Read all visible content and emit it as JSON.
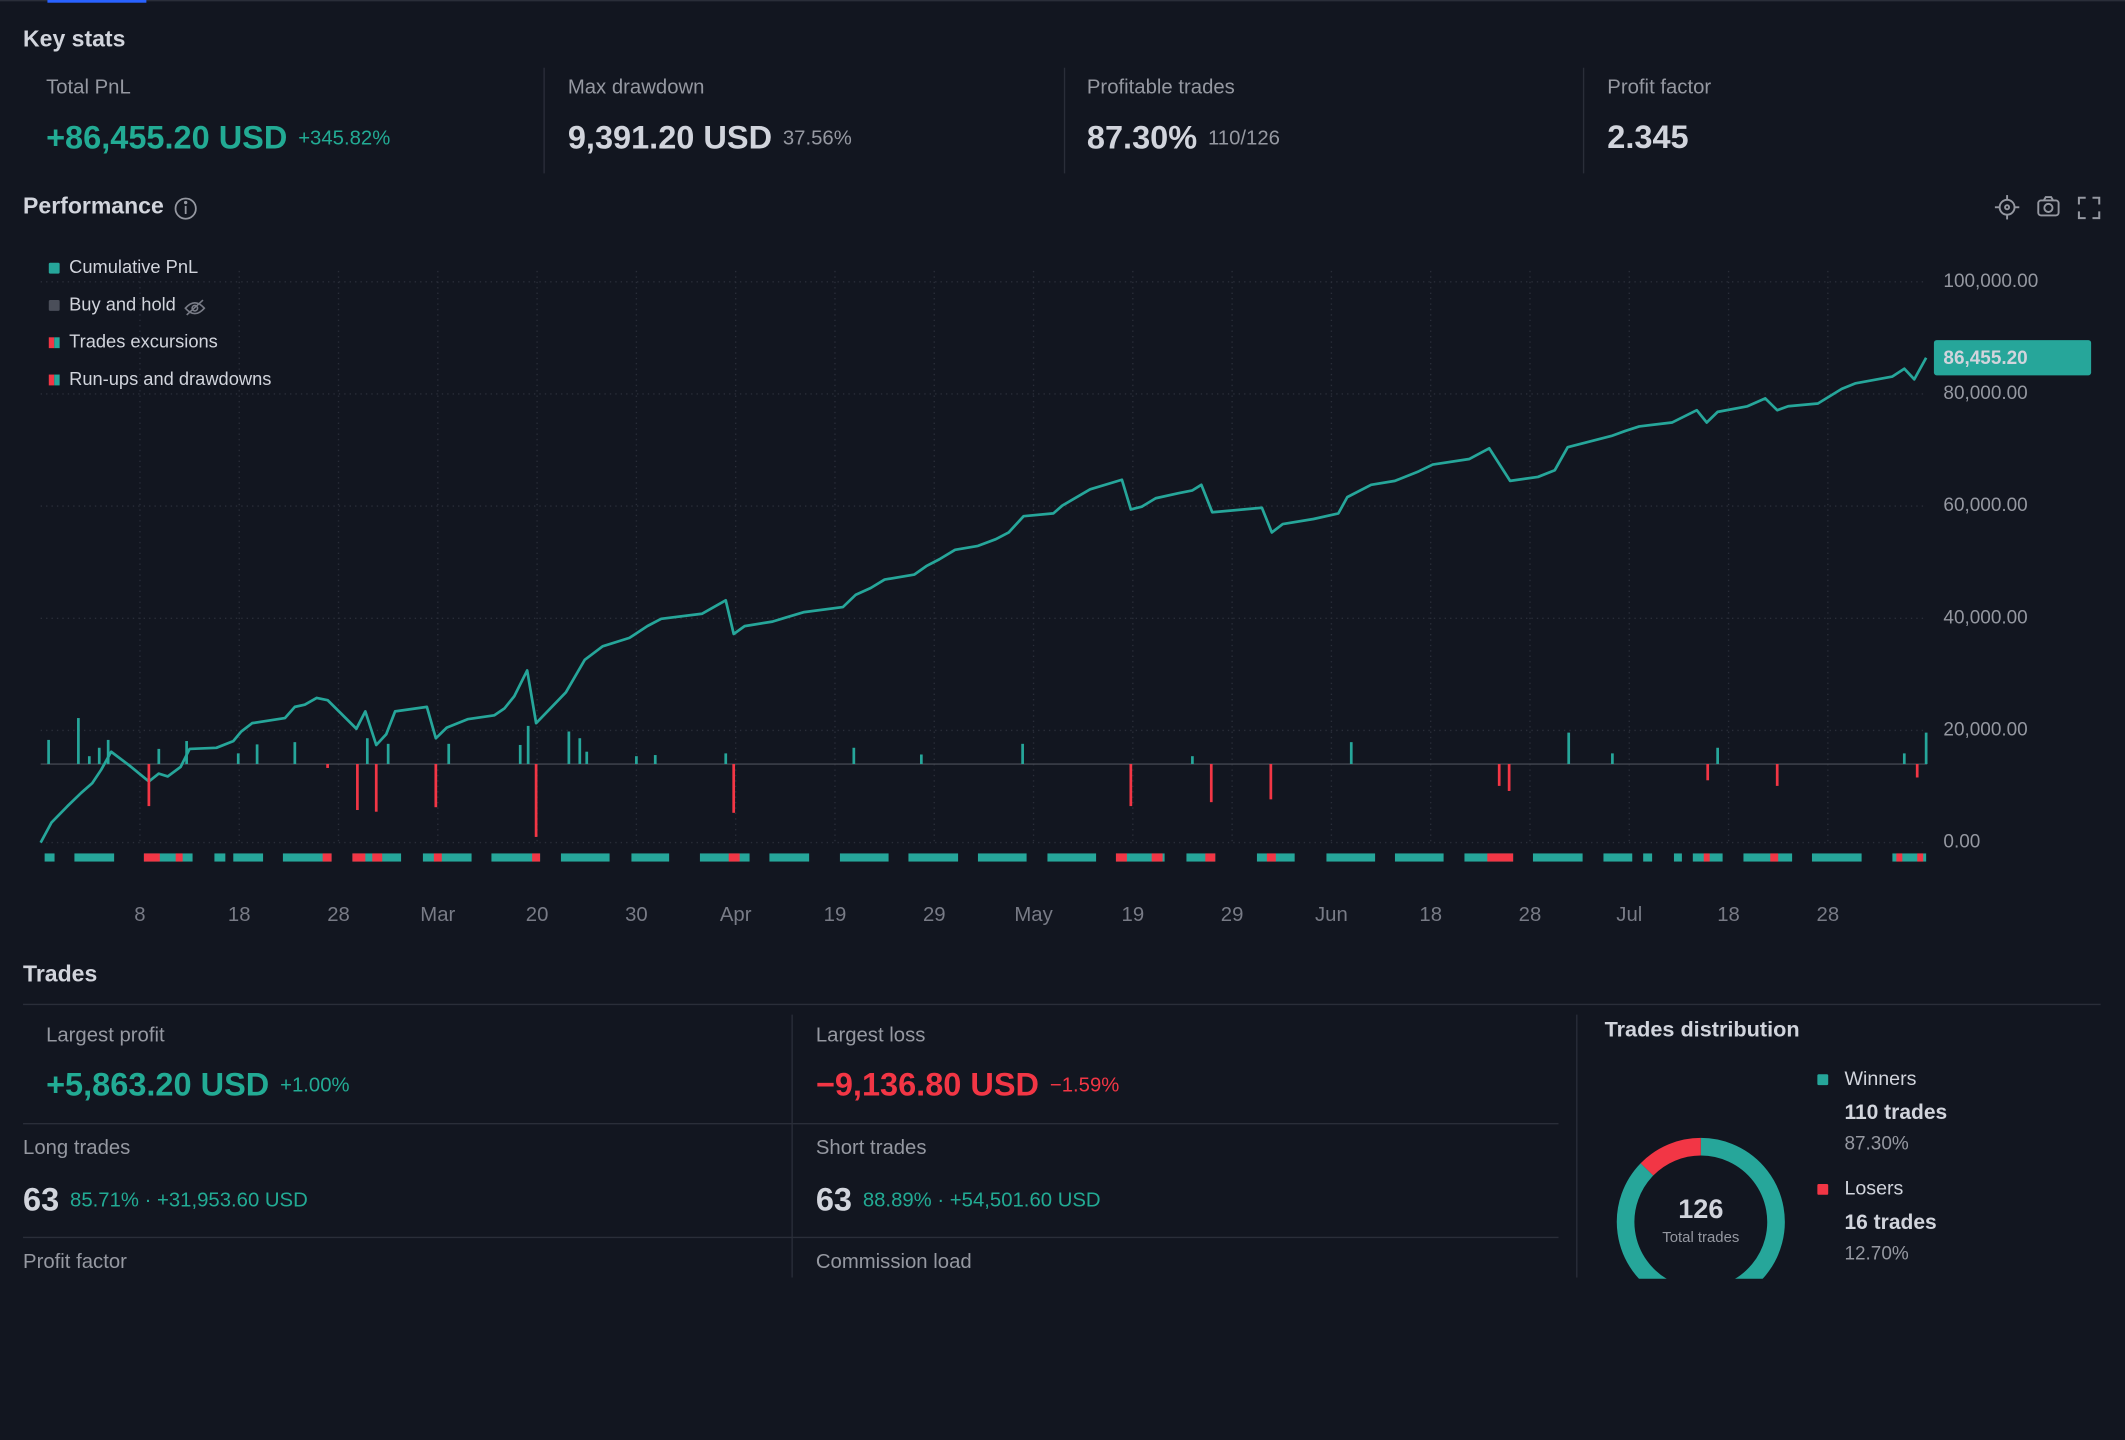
{
  "key_stats": {
    "title": "Key stats",
    "items": [
      {
        "label": "Total PnL",
        "value": "+86,455.20 USD",
        "sub": "+345.82%"
      },
      {
        "label": "Max drawdown",
        "value": "9,391.20 USD",
        "sub": "37.56%"
      },
      {
        "label": "Profitable trades",
        "value": "87.30%",
        "sub": "110/126"
      },
      {
        "label": "Profit factor",
        "value": "2.345"
      }
    ]
  },
  "chart_data": [
    {
      "type": "line",
      "title": "Performance",
      "xlim": [
        0,
        190
      ],
      "ylim": [
        0,
        100000
      ],
      "grid": true,
      "xticks": [
        {
          "value": 10,
          "label": "8"
        },
        {
          "value": 20,
          "label": "18"
        },
        {
          "value": 30,
          "label": "28"
        },
        {
          "value": 40,
          "label": "Mar"
        },
        {
          "value": 50,
          "label": "20"
        },
        {
          "value": 60,
          "label": "30"
        },
        {
          "value": 70,
          "label": "Apr"
        },
        {
          "value": 80,
          "label": "19"
        },
        {
          "value": 90,
          "label": "29"
        },
        {
          "value": 100,
          "label": "May"
        },
        {
          "value": 110,
          "label": "19"
        },
        {
          "value": 120,
          "label": "29"
        },
        {
          "value": 130,
          "label": "Jun"
        },
        {
          "value": 140,
          "label": "18"
        },
        {
          "value": 150,
          "label": "28"
        },
        {
          "value": 160,
          "label": "Jul"
        },
        {
          "value": 170,
          "label": "18"
        },
        {
          "value": 180,
          "label": "28"
        }
      ],
      "yticks": [
        {
          "value": 0,
          "label": "0.00"
        },
        {
          "value": 20000,
          "label": "20,000.00"
        },
        {
          "value": 40000,
          "label": "40,000.00"
        },
        {
          "value": 60000,
          "label": "60,000.00"
        },
        {
          "value": 80000,
          "label": "80,000.00"
        },
        {
          "value": 100000,
          "label": "100,000.00"
        }
      ],
      "series": [
        {
          "name": "Cumulative PnL",
          "color": "#26a69a",
          "last_value_label": "86,455.20",
          "x": [
            0,
            1.1,
            2.7,
            4.1,
            5.2,
            6.1,
            7.1,
            8.9,
            10.9,
            11.9,
            12.8,
            14.1,
            15,
            17.7,
            19.4,
            20.2,
            21.3,
            24.6,
            25.6,
            26.6,
            27.8,
            28.9,
            31.8,
            32.7,
            33.8,
            34.8,
            35.7,
            38.9,
            39.8,
            40.9,
            43,
            45.7,
            46.7,
            47.7,
            49,
            49.9,
            52.9,
            54.8,
            56.6,
            59.3,
            61.1,
            62.5,
            66.6,
            69,
            69.8,
            70.9,
            73.7,
            75,
            76.9,
            80.8,
            82.1,
            83.6,
            85,
            88,
            89.2,
            90.5,
            92.1,
            94.4,
            96.2,
            97.5,
            99,
            102,
            102.9,
            105.7,
            108.9,
            109.8,
            110.9,
            112.3,
            114.6,
            116,
            116.9,
            118,
            123,
            124,
            125.1,
            128.2,
            130.7,
            131.6,
            134,
            136.4,
            138.8,
            140.2,
            143.9,
            145.9,
            148,
            150.8,
            152.5,
            153.8,
            158.2,
            159.6,
            161,
            164.3,
            166.8,
            167.8,
            168.9,
            171.9,
            173.7,
            174.9,
            176,
            179,
            181.4,
            182.8,
            186.5,
            187.7,
            188.7,
            189.9
          ],
          "values": [
            0,
            3600,
            6500,
            8900,
            10600,
            13000,
            16200,
            13800,
            10900,
            12300,
            11800,
            13500,
            16700,
            16900,
            18100,
            19800,
            21300,
            22200,
            24200,
            24600,
            25800,
            25400,
            20300,
            23400,
            17400,
            19300,
            23400,
            24200,
            18600,
            20500,
            22000,
            22700,
            23900,
            26100,
            30700,
            21300,
            26800,
            32600,
            35000,
            36500,
            38600,
            39900,
            40800,
            43200,
            37200,
            38600,
            39400,
            40100,
            41100,
            42000,
            44200,
            45400,
            46900,
            47800,
            49300,
            50500,
            52200,
            52900,
            54100,
            55300,
            58200,
            58700,
            60100,
            63000,
            64700,
            59400,
            59900,
            61400,
            62300,
            62800,
            63800,
            58900,
            59700,
            55300,
            56800,
            57700,
            58700,
            61600,
            63800,
            64500,
            66200,
            67400,
            68400,
            70300,
            64500,
            65200,
            66400,
            70500,
            72500,
            73400,
            74200,
            74900,
            77100,
            74900,
            76800,
            77800,
            79200,
            77100,
            77800,
            78300,
            80900,
            81900,
            83100,
            84500,
            82600,
            86455.2
          ]
        },
        {
          "name": "Buy and hold",
          "color": "#4a4e59",
          "visible": false
        },
        {
          "name": "Trades excursions",
          "color": "#26a69a",
          "loss_color": "#f23645",
          "segments": [
            [
              0.4,
              1.4
            ],
            [
              3.4,
              7.4
            ],
            [
              10.4,
              15.3
            ],
            [
              17.5,
              18.6
            ],
            [
              19.4,
              22.4
            ],
            [
              24.4,
              29.3
            ],
            [
              31.4,
              36.3
            ],
            [
              38.5,
              43.4
            ],
            [
              45.4,
              50.3
            ],
            [
              52.4,
              57.3
            ],
            [
              59.5,
              63.3
            ],
            [
              66.4,
              71.4
            ],
            [
              73.4,
              77.4
            ],
            [
              80.5,
              85.4
            ],
            [
              87.4,
              92.4
            ],
            [
              94.4,
              99.3
            ],
            [
              101.4,
              106.3
            ],
            [
              108.3,
              113.2
            ],
            [
              115.4,
              118.3
            ],
            [
              122.5,
              126.3
            ],
            [
              129.5,
              134.4
            ],
            [
              136.4,
              141.3
            ],
            [
              143.4,
              148.3
            ],
            [
              150.3,
              155.3
            ],
            [
              157.4,
              160.3
            ],
            [
              161.4,
              162.3
            ],
            [
              164.5,
              165.3
            ],
            [
              166.4,
              169.4
            ],
            [
              171.5,
              176.4
            ],
            [
              178.4,
              183.4
            ],
            [
              186.5,
              189.9
            ]
          ],
          "loss_segments": [
            [
              10.4,
              12
            ],
            [
              13.6,
              14.3
            ],
            [
              28.4,
              29.3
            ],
            [
              31.4,
              32.7
            ],
            [
              33.4,
              34.4
            ],
            [
              39.6,
              40.4
            ],
            [
              49.5,
              50.3
            ],
            [
              69.3,
              70.4
            ],
            [
              108.3,
              109.4
            ],
            [
              111.9,
              113
            ],
            [
              117.3,
              118.3
            ],
            [
              123.5,
              124.4
            ],
            [
              145.7,
              148.3
            ],
            [
              167.5,
              168.1
            ],
            [
              174.2,
              175
            ],
            [
              186.9,
              187.5
            ],
            [
              189,
              189.6
            ]
          ]
        },
        {
          "name": "Run-ups and drawdowns",
          "color": "#26a69a",
          "negative_color": "#f23645",
          "x": [
            0.8,
            3.8,
            4.9,
            5.9,
            6.8,
            10.9,
            11.9,
            14.7,
            19.9,
            21.8,
            25.6,
            28.9,
            31.9,
            32.9,
            33.8,
            35,
            39.8,
            41.1,
            48.3,
            49.1,
            49.9,
            53.2,
            54.3,
            55,
            60,
            61.9,
            69,
            69.8,
            81.9,
            88.7,
            98.9,
            109.8,
            116,
            117.9,
            123.9,
            132,
            146.9,
            147.9,
            153.9,
            158.3,
            167.9,
            168.9,
            174.9,
            187.7,
            189,
            189.9
          ],
          "values": [
            4300,
            8200,
            1400,
            2900,
            4300,
            -7500,
            2700,
            4100,
            1900,
            3500,
            3900,
            -700,
            -8200,
            4600,
            -8500,
            3600,
            -7700,
            3600,
            3400,
            6800,
            -13000,
            5800,
            4600,
            2200,
            1400,
            1600,
            1900,
            -8700,
            2900,
            1700,
            3600,
            -7500,
            1400,
            -6800,
            -6300,
            3900,
            -3900,
            -4800,
            5600,
            1900,
            -2900,
            2900,
            -3900,
            1900,
            -2400,
            5600
          ]
        }
      ]
    },
    {
      "type": "pie",
      "title": "Trades distribution",
      "categories": [
        "Winners",
        "Losers"
      ],
      "values": [
        110,
        16
      ],
      "value_labels": [
        "110 trades",
        "16 trades"
      ],
      "percent_labels": [
        "87.30%",
        "12.70%"
      ],
      "colors": [
        "#26a69a",
        "#f23645"
      ],
      "total": 126,
      "total_label": "Total trades"
    }
  ],
  "trades": {
    "title": "Trades",
    "cells": [
      {
        "label": "Largest profit",
        "value": "+5,863.20 USD",
        "sub": "+1.00%"
      },
      {
        "label": "Largest loss",
        "value": "−9,136.80 USD",
        "sub": "−1.59%"
      },
      {
        "label": "Long trades",
        "value": "63",
        "sub": "85.71% · +31,953.60 USD"
      },
      {
        "label": "Short trades",
        "value": "63",
        "sub": "88.89% · +54,501.60 USD"
      },
      {
        "label": "Profit factor"
      },
      {
        "label": "Commission load"
      }
    ]
  }
}
